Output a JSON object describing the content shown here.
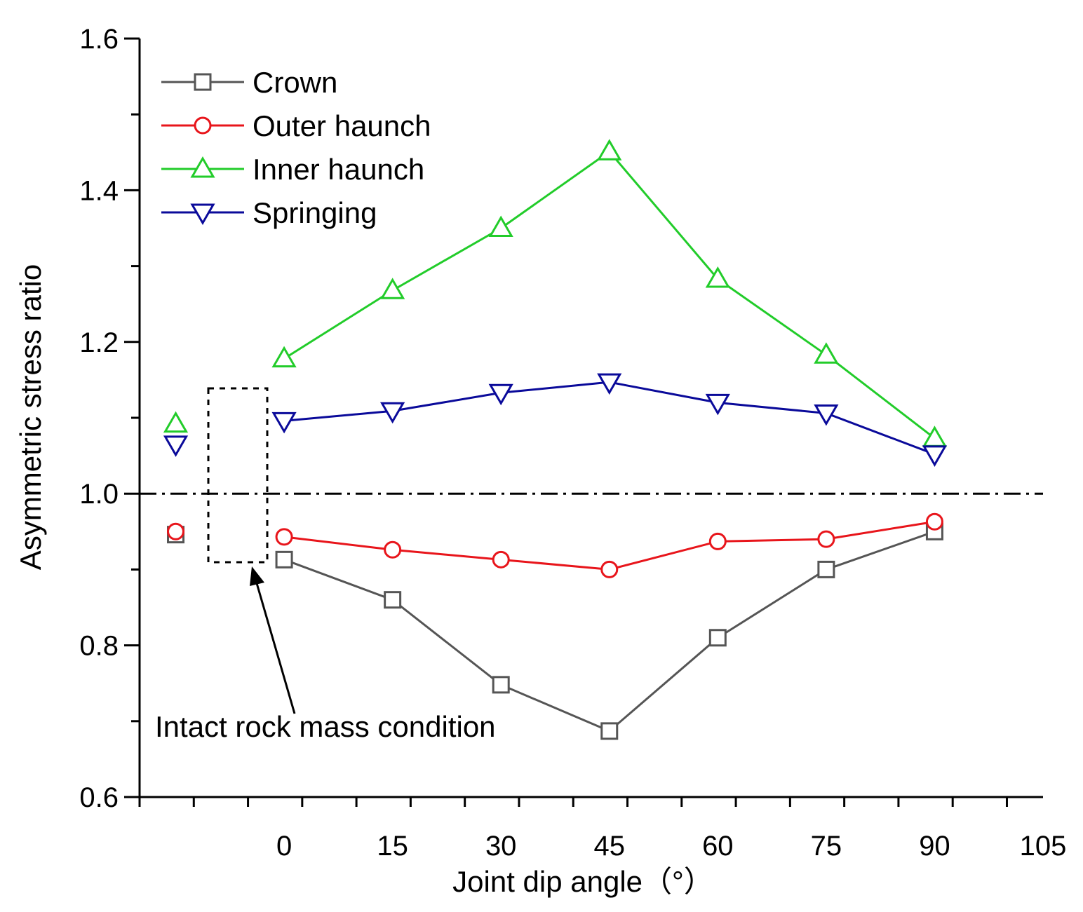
{
  "chart_data": {
    "type": "line",
    "title": "",
    "xlabel": "Joint dip angle（°）",
    "ylabel": "Asymmetric stress ratio",
    "xlim": [
      -20,
      105
    ],
    "ylim": [
      0.6,
      1.6
    ],
    "xticks": [
      0,
      15,
      30,
      45,
      60,
      75,
      90,
      105
    ],
    "xtick_labels": [
      "0",
      "15",
      "30",
      "45",
      "60",
      "75",
      "90",
      "105"
    ],
    "yticks": [
      0.6,
      0.8,
      1.0,
      1.2,
      1.4,
      1.6
    ],
    "ytick_labels": [
      "0.6",
      "0.8",
      "1.0",
      "1.2",
      "1.4",
      "1.6"
    ],
    "x": [
      0,
      15,
      30,
      45,
      60,
      75,
      90
    ],
    "series": [
      {
        "name": "Crown",
        "color": "#555555",
        "marker": "square",
        "values": [
          0.913,
          0.86,
          0.748,
          0.687,
          0.81,
          0.9,
          0.95
        ]
      },
      {
        "name": "Outer haunch",
        "color": "#e8151b",
        "marker": "circle",
        "values": [
          0.943,
          0.926,
          0.913,
          0.9,
          0.937,
          0.94,
          0.963
        ]
      },
      {
        "name": "Inner haunch",
        "color": "#22cc2a",
        "marker": "triangle-up",
        "values": [
          1.178,
          1.268,
          1.35,
          1.451,
          1.283,
          1.183,
          1.073
        ]
      },
      {
        "name": "Springing",
        "color": "#0a0a9a",
        "marker": "triangle-down",
        "values": [
          1.096,
          1.109,
          1.133,
          1.147,
          1.12,
          1.106,
          1.052
        ]
      }
    ],
    "intact_condition": {
      "x": -15,
      "label": "Intact rock mass condition",
      "values": {
        "Crown": 0.946,
        "Outer haunch": 0.95,
        "Inner haunch": 1.092,
        "Springing": 1.065
      }
    },
    "reference_line": {
      "y": 1.0,
      "style": "dash-dot",
      "color": "#000000"
    },
    "legend": {
      "placement": "top-left",
      "entries": [
        "Crown",
        "Outer haunch",
        "Inner haunch",
        "Springing"
      ]
    },
    "grid": false
  }
}
